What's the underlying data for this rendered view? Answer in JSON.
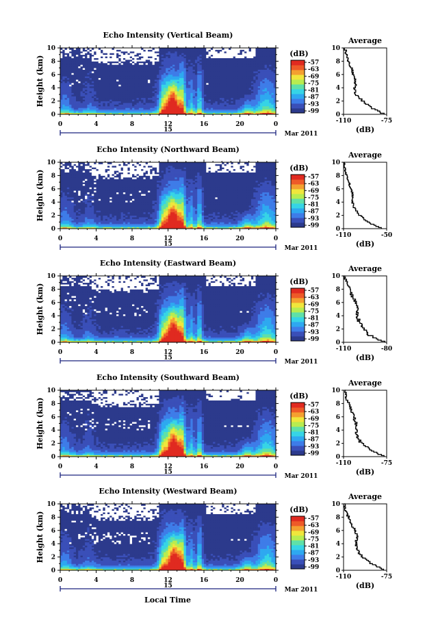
{
  "colors": [
    "#2c3a8c",
    "#3a4fb8",
    "#3e7ce8",
    "#2ea8f0",
    "#36d4e6",
    "#5fe0a8",
    "#b8ec50",
    "#f0e63c",
    "#f4a030",
    "#ee5a28",
    "#e02a20"
  ],
  "shared": {
    "height_label": "Height (km)",
    "cbar_label": "(dB)",
    "cbar_ticks": [
      "-57",
      "-63",
      "-69",
      "-75",
      "-81",
      "-87",
      "-93",
      "-99"
    ],
    "time_ticks": [
      "0",
      "4",
      "8",
      "12",
      "16",
      "20",
      "0"
    ],
    "date_day": "15",
    "date_label": "Mar 2011",
    "avg_title": "Average",
    "avg_xlabel": "(dB)",
    "xlabel": "Local Time"
  },
  "chart_data": [
    {
      "type": "heatmap",
      "title": "Echo Intensity (Vertical Beam)",
      "ylabel": "Height (km)",
      "ylim": [
        0,
        10
      ],
      "xlim": [
        0,
        24
      ],
      "colorbar": {
        "label": "(dB)",
        "range": [
          -99,
          -57
        ]
      },
      "profile": {
        "title": "Average",
        "xlabel": "(dB)",
        "xticks": [
          "-110",
          "-75"
        ],
        "xlim": [
          -110,
          -75
        ],
        "height": [
          0,
          1,
          2,
          3,
          4,
          5,
          6,
          7,
          8,
          9,
          10
        ],
        "values": [
          -78,
          -88,
          -95,
          -100,
          -101,
          -100,
          -102,
          -104,
          -106,
          -108,
          -109
        ]
      }
    },
    {
      "type": "heatmap",
      "title": "Echo Intensity (Northward Beam)",
      "ylabel": "Height (km)",
      "ylim": [
        0,
        10
      ],
      "xlim": [
        0,
        24
      ],
      "colorbar": {
        "label": "(dB)",
        "range": [
          -99,
          -57
        ]
      },
      "profile": {
        "title": "Average",
        "xlabel": "(dB)",
        "xticks": [
          "-110",
          "-50"
        ],
        "xlim": [
          -110,
          -50
        ],
        "height": [
          0,
          1,
          2,
          3,
          4,
          5,
          6,
          7,
          8,
          9,
          10
        ],
        "values": [
          -58,
          -78,
          -88,
          -95,
          -98,
          -97,
          -100,
          -103,
          -106,
          -108,
          -109
        ]
      }
    },
    {
      "type": "heatmap",
      "title": "Echo Intensity (Eastward Beam)",
      "ylabel": "Height (km)",
      "ylim": [
        0,
        10
      ],
      "xlim": [
        0,
        24
      ],
      "colorbar": {
        "label": "(dB)",
        "range": [
          -99,
          -57
        ]
      },
      "profile": {
        "title": "Average",
        "xlabel": "(dB)",
        "xticks": [
          "-110",
          "-80"
        ],
        "xlim": [
          -110,
          -80
        ],
        "height": [
          0,
          1,
          2,
          3,
          4,
          5,
          6,
          7,
          8,
          9,
          10
        ],
        "values": [
          -82,
          -92,
          -96,
          -99,
          -101,
          -100,
          -102,
          -104,
          -106,
          -108,
          -109
        ]
      }
    },
    {
      "type": "heatmap",
      "title": "Echo Intensity (Southward Beam)",
      "ylabel": "Height (km)",
      "ylim": [
        0,
        10
      ],
      "xlim": [
        0,
        24
      ],
      "colorbar": {
        "label": "(dB)",
        "range": [
          -99,
          -57
        ]
      },
      "profile": {
        "title": "Average",
        "xlabel": "(dB)",
        "xticks": [
          "-110",
          "-75"
        ],
        "xlim": [
          -110,
          -75
        ],
        "height": [
          0,
          1,
          2,
          3,
          4,
          5,
          6,
          7,
          8,
          9,
          10
        ],
        "values": [
          -78,
          -88,
          -96,
          -99,
          -100,
          -100,
          -102,
          -104,
          -106,
          -108,
          -109
        ]
      }
    },
    {
      "type": "heatmap",
      "title": "Echo Intensity (Westward Beam)",
      "ylabel": "Height (km)",
      "ylim": [
        0,
        10
      ],
      "xlim": [
        0,
        24
      ],
      "colorbar": {
        "label": "(dB)",
        "range": [
          -99,
          -57
        ]
      },
      "profile": {
        "title": "Average",
        "xlabel": "(dB)",
        "xticks": [
          "-110",
          "-75"
        ],
        "xlim": [
          -110,
          -75
        ],
        "height": [
          0,
          1,
          2,
          3,
          4,
          5,
          6,
          7,
          8,
          9,
          10
        ],
        "values": [
          -78,
          -88,
          -95,
          -99,
          -100,
          -99,
          -101,
          -104,
          -106,
          -108,
          -109
        ]
      }
    }
  ]
}
